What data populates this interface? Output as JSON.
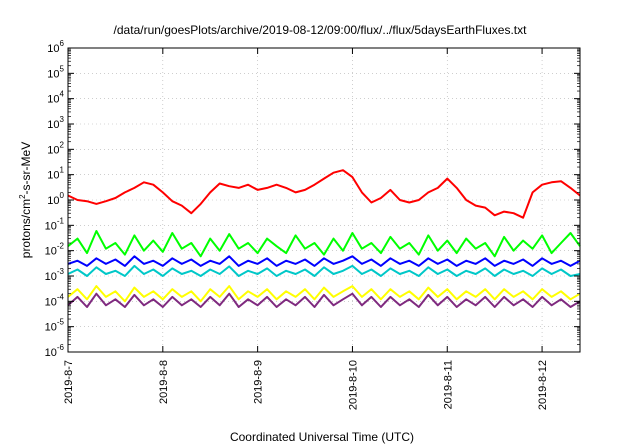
{
  "chart_data": {
    "type": "line",
    "title": "/data/run/goesPlots/archive/2019-08-12/09:00/flux/../flux/5daysEarthFluxes.txt",
    "xlabel": "Coordinated Universal Time (UTC)",
    "ylabel": "protons/cm",
    "ylabel_sup": "2",
    "ylabel_tail": "-s-sr-MeV",
    "xlim": [
      0,
      5.4
    ],
    "ylim_log10": [
      -6,
      6
    ],
    "yscale": "log",
    "grid": true,
    "legend": "none",
    "x_ticks": [
      {
        "x": 0,
        "label": "2019-8-7"
      },
      {
        "x": 1,
        "label": "2019-8-8"
      },
      {
        "x": 2,
        "label": "2019-8-9"
      },
      {
        "x": 3,
        "label": "2019-8-10"
      },
      {
        "x": 4,
        "label": "2019-8-11"
      },
      {
        "x": 5,
        "label": "2019-8-12"
      }
    ],
    "y_ticks": [
      {
        "exp": -6,
        "label": "10",
        "sup": "-6"
      },
      {
        "exp": -5,
        "label": "10",
        "sup": "-5"
      },
      {
        "exp": -4,
        "label": "10",
        "sup": "-4"
      },
      {
        "exp": -3,
        "label": "10",
        "sup": "-3"
      },
      {
        "exp": -2,
        "label": "10",
        "sup": "-2"
      },
      {
        "exp": -1,
        "label": "10",
        "sup": "-1"
      },
      {
        "exp": 0,
        "label": "10",
        "sup": "0"
      },
      {
        "exp": 1,
        "label": "10",
        "sup": "1"
      },
      {
        "exp": 2,
        "label": "10",
        "sup": "2"
      },
      {
        "exp": 3,
        "label": "10",
        "sup": "3"
      },
      {
        "exp": 4,
        "label": "10",
        "sup": "4"
      },
      {
        "exp": 5,
        "label": "10",
        "sup": "5"
      },
      {
        "exp": 6,
        "label": "10",
        "sup": "6"
      }
    ],
    "series": [
      {
        "color": "#ff0000",
        "x": [
          0,
          0.1,
          0.2,
          0.3,
          0.4,
          0.5,
          0.6,
          0.7,
          0.8,
          0.9,
          1.0,
          1.1,
          1.2,
          1.3,
          1.4,
          1.5,
          1.6,
          1.7,
          1.8,
          1.9,
          2.0,
          2.1,
          2.2,
          2.3,
          2.4,
          2.5,
          2.6,
          2.7,
          2.8,
          2.9,
          3.0,
          3.1,
          3.2,
          3.3,
          3.4,
          3.5,
          3.6,
          3.7,
          3.8,
          3.9,
          4.0,
          4.1,
          4.2,
          4.3,
          4.4,
          4.5,
          4.6,
          4.7,
          4.8,
          4.9,
          5.0,
          5.1,
          5.2,
          5.3,
          5.4
        ],
        "y": [
          1.5,
          1.0,
          0.9,
          0.7,
          0.9,
          1.2,
          2.0,
          3.0,
          5.0,
          4.0,
          2.0,
          0.9,
          0.6,
          0.3,
          0.7,
          2.0,
          4.5,
          3.5,
          3.0,
          4.0,
          2.5,
          3.0,
          4.0,
          3.0,
          2.0,
          2.5,
          4.0,
          7.0,
          12,
          15,
          8.0,
          2.0,
          0.8,
          1.2,
          2.5,
          1.0,
          0.8,
          1.0,
          2.0,
          3.0,
          7.0,
          3.0,
          1.0,
          0.6,
          0.5,
          0.25,
          0.35,
          0.3,
          0.2,
          2.0,
          4.0,
          5.0,
          5.5,
          3.0,
          1.5
        ]
      },
      {
        "color": "#00ff00",
        "x": [
          0,
          0.1,
          0.2,
          0.3,
          0.4,
          0.5,
          0.6,
          0.7,
          0.8,
          0.9,
          1.0,
          1.1,
          1.2,
          1.3,
          1.4,
          1.5,
          1.6,
          1.7,
          1.8,
          1.9,
          2.0,
          2.1,
          2.2,
          2.3,
          2.4,
          2.5,
          2.6,
          2.7,
          2.8,
          2.9,
          3.0,
          3.1,
          3.2,
          3.3,
          3.4,
          3.5,
          3.6,
          3.7,
          3.8,
          3.9,
          4.0,
          4.1,
          4.2,
          4.3,
          4.4,
          4.5,
          4.6,
          4.7,
          4.8,
          4.9,
          5.0,
          5.1,
          5.2,
          5.3,
          5.4
        ],
        "y": [
          0.015,
          0.03,
          0.008,
          0.06,
          0.012,
          0.02,
          0.007,
          0.04,
          0.01,
          0.025,
          0.009,
          0.05,
          0.012,
          0.02,
          0.006,
          0.03,
          0.01,
          0.045,
          0.012,
          0.02,
          0.008,
          0.03,
          0.015,
          0.008,
          0.04,
          0.012,
          0.02,
          0.007,
          0.03,
          0.01,
          0.05,
          0.012,
          0.02,
          0.008,
          0.035,
          0.012,
          0.02,
          0.007,
          0.04,
          0.01,
          0.025,
          0.008,
          0.03,
          0.012,
          0.02,
          0.006,
          0.035,
          0.01,
          0.025,
          0.012,
          0.04,
          0.008,
          0.02,
          0.05,
          0.015
        ]
      },
      {
        "color": "#0000ff",
        "x": [
          0,
          0.1,
          0.2,
          0.3,
          0.4,
          0.5,
          0.6,
          0.7,
          0.8,
          0.9,
          1.0,
          1.1,
          1.2,
          1.3,
          1.4,
          1.5,
          1.6,
          1.7,
          1.8,
          1.9,
          2.0,
          2.1,
          2.2,
          2.3,
          2.4,
          2.5,
          2.6,
          2.7,
          2.8,
          2.9,
          3.0,
          3.1,
          3.2,
          3.3,
          3.4,
          3.5,
          3.6,
          3.7,
          3.8,
          3.9,
          4.0,
          4.1,
          4.2,
          4.3,
          4.4,
          4.5,
          4.6,
          4.7,
          4.8,
          4.9,
          5.0,
          5.1,
          5.2,
          5.3,
          5.4
        ],
        "y": [
          0.003,
          0.004,
          0.0025,
          0.005,
          0.003,
          0.0045,
          0.0025,
          0.006,
          0.003,
          0.004,
          0.0025,
          0.005,
          0.003,
          0.0045,
          0.0025,
          0.004,
          0.003,
          0.006,
          0.0025,
          0.004,
          0.003,
          0.005,
          0.0025,
          0.004,
          0.003,
          0.0045,
          0.0025,
          0.005,
          0.003,
          0.004,
          0.006,
          0.003,
          0.0045,
          0.0025,
          0.005,
          0.003,
          0.004,
          0.0025,
          0.005,
          0.003,
          0.0045,
          0.0025,
          0.004,
          0.003,
          0.005,
          0.0025,
          0.004,
          0.003,
          0.0045,
          0.0025,
          0.005,
          0.003,
          0.004,
          0.0025,
          0.004
        ]
      },
      {
        "color": "#00c8c8",
        "x": [
          0,
          0.1,
          0.2,
          0.3,
          0.4,
          0.5,
          0.6,
          0.7,
          0.8,
          0.9,
          1.0,
          1.1,
          1.2,
          1.3,
          1.4,
          1.5,
          1.6,
          1.7,
          1.8,
          1.9,
          2.0,
          2.1,
          2.2,
          2.3,
          2.4,
          2.5,
          2.6,
          2.7,
          2.8,
          2.9,
          3.0,
          3.1,
          3.2,
          3.3,
          3.4,
          3.5,
          3.6,
          3.7,
          3.8,
          3.9,
          4.0,
          4.1,
          4.2,
          4.3,
          4.4,
          4.5,
          4.6,
          4.7,
          4.8,
          4.9,
          5.0,
          5.1,
          5.2,
          5.3,
          5.4
        ],
        "y": [
          0.0012,
          0.0018,
          0.001,
          0.0022,
          0.0012,
          0.0016,
          0.001,
          0.0025,
          0.0012,
          0.0018,
          0.001,
          0.002,
          0.0012,
          0.0016,
          0.001,
          0.0018,
          0.0012,
          0.0024,
          0.001,
          0.0016,
          0.0012,
          0.002,
          0.001,
          0.0016,
          0.0012,
          0.0018,
          0.001,
          0.0022,
          0.0012,
          0.0016,
          0.0025,
          0.0012,
          0.0018,
          0.001,
          0.002,
          0.0012,
          0.0016,
          0.001,
          0.0022,
          0.0012,
          0.0018,
          0.001,
          0.0016,
          0.0012,
          0.002,
          0.001,
          0.0018,
          0.0012,
          0.0016,
          0.001,
          0.002,
          0.0012,
          0.0018,
          0.001,
          0.0012
        ]
      },
      {
        "color": "#ffff00",
        "x": [
          0,
          0.1,
          0.2,
          0.3,
          0.4,
          0.5,
          0.6,
          0.7,
          0.8,
          0.9,
          1.0,
          1.1,
          1.2,
          1.3,
          1.4,
          1.5,
          1.6,
          1.7,
          1.8,
          1.9,
          2.0,
          2.1,
          2.2,
          2.3,
          2.4,
          2.5,
          2.6,
          2.7,
          2.8,
          2.9,
          3.0,
          3.1,
          3.2,
          3.3,
          3.4,
          3.5,
          3.6,
          3.7,
          3.8,
          3.9,
          4.0,
          4.1,
          4.2,
          4.3,
          4.4,
          4.5,
          4.6,
          4.7,
          4.8,
          4.9,
          5.0,
          5.1,
          5.2,
          5.3,
          5.4
        ],
        "y": [
          0.00015,
          0.0003,
          0.00012,
          0.0004,
          0.00015,
          0.00025,
          0.0001,
          0.00035,
          0.00015,
          0.00025,
          0.00012,
          0.0003,
          0.00015,
          0.00025,
          0.0001,
          0.0003,
          0.00015,
          0.0004,
          0.00012,
          0.00025,
          0.00015,
          0.0003,
          0.00012,
          0.00025,
          0.00015,
          0.0003,
          0.00012,
          0.00035,
          0.00015,
          0.00025,
          0.0004,
          0.00015,
          0.0003,
          0.00012,
          0.0003,
          0.00015,
          0.00025,
          0.00012,
          0.00035,
          0.00015,
          0.0003,
          0.00012,
          0.00025,
          0.00015,
          0.0003,
          0.00012,
          0.0003,
          0.00015,
          0.00025,
          0.00012,
          0.0003,
          0.00015,
          0.00025,
          0.00012,
          0.0002
        ]
      },
      {
        "color": "#7f2a7f",
        "x": [
          0,
          0.1,
          0.2,
          0.3,
          0.4,
          0.5,
          0.6,
          0.7,
          0.8,
          0.9,
          1.0,
          1.1,
          1.2,
          1.3,
          1.4,
          1.5,
          1.6,
          1.7,
          1.8,
          1.9,
          2.0,
          2.1,
          2.2,
          2.3,
          2.4,
          2.5,
          2.6,
          2.7,
          2.8,
          2.9,
          3.0,
          3.1,
          3.2,
          3.3,
          3.4,
          3.5,
          3.6,
          3.7,
          3.8,
          3.9,
          4.0,
          4.1,
          4.2,
          4.3,
          4.4,
          4.5,
          4.6,
          4.7,
          4.8,
          4.9,
          5.0,
          5.1,
          5.2,
          5.3,
          5.4
        ],
        "y": [
          7e-05,
          0.00015,
          6e-05,
          0.0002,
          7e-05,
          0.00012,
          6e-05,
          0.00018,
          7e-05,
          0.00012,
          6e-05,
          0.00015,
          7e-05,
          0.00012,
          6e-05,
          0.00015,
          7e-05,
          0.0002,
          6e-05,
          0.00012,
          7e-05,
          0.00015,
          6e-05,
          0.00012,
          7e-05,
          0.00015,
          6e-05,
          0.00018,
          7e-05,
          0.00012,
          0.0002,
          7e-05,
          0.00015,
          6e-05,
          0.00015,
          7e-05,
          0.00012,
          6e-05,
          0.00018,
          7e-05,
          0.00015,
          6e-05,
          0.00012,
          7e-05,
          0.00015,
          6e-05,
          0.00015,
          7e-05,
          0.00012,
          6e-05,
          0.00015,
          7e-05,
          0.00012,
          6e-05,
          0.0001
        ]
      }
    ]
  }
}
